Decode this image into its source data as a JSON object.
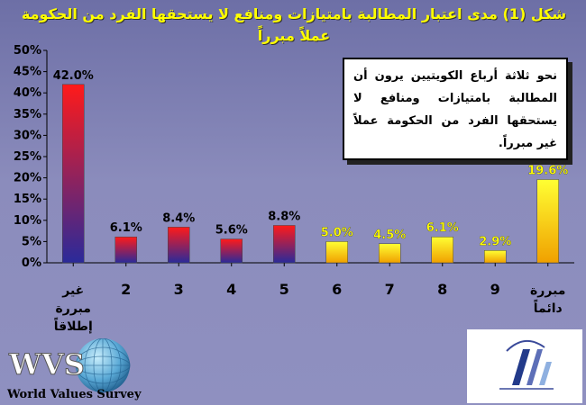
{
  "chart_data": {
    "type": "bar",
    "title": "شكل (1)  مدى اعتبار المطالبة بامتيازات ومنافع لا يستحقها الفرد من الحكومة عملاً مبرراً",
    "categories": [
      [
        "غير",
        "مبررة",
        "إطلاقاً"
      ],
      [
        "2"
      ],
      [
        "3"
      ],
      [
        "4"
      ],
      [
        "5"
      ],
      [
        "6"
      ],
      [
        "7"
      ],
      [
        "8"
      ],
      [
        "9"
      ],
      [
        "مبررة",
        "دائماً"
      ]
    ],
    "values": [
      42.0,
      6.1,
      8.4,
      5.6,
      8.8,
      5.0,
      4.5,
      6.1,
      2.9,
      19.6
    ],
    "data_labels": [
      "42.0%",
      "6.1%",
      "8.4%",
      "5.6%",
      "8.8%",
      "5.0%",
      "4.5%",
      "6.1%",
      "2.9%",
      "19.6%"
    ],
    "y_ticks": [
      "0%",
      "5%",
      "10%",
      "15%",
      "20%",
      "25%",
      "30%",
      "35%",
      "40%",
      "45%",
      "50%"
    ],
    "ylim": [
      0,
      50
    ],
    "grid": false,
    "colors": {
      "warm_top": "#ff1a1a",
      "warm_bottom": "#2a2a9a",
      "yellow_top": "#ffff33",
      "yellow_bottom": "#f0a000",
      "label_dark": "#000000",
      "label_bright": "#ffff00"
    }
  },
  "callout": {
    "text": "نحو ثلاثة أرباع الكويتيين يرون أن المطالبة بامتيازات ومنافع لا يستحقها الفرد من الحكومة عملاً غير مبرراً."
  },
  "logos": {
    "wvs_letters": "WVS",
    "wvs_caption": "World Values Survey"
  }
}
